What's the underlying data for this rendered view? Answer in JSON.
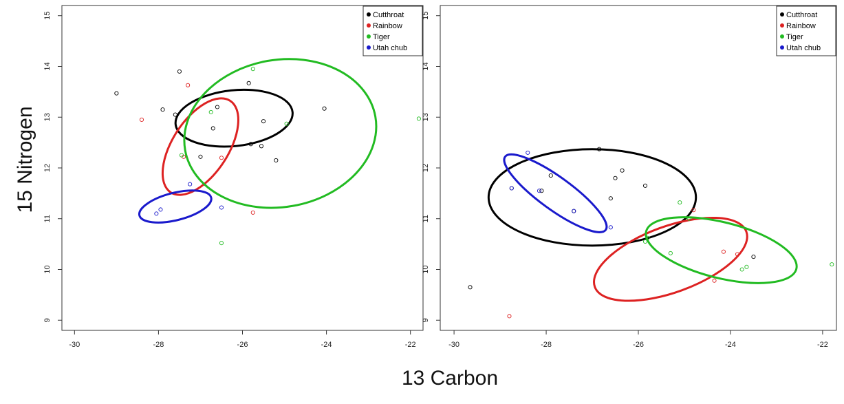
{
  "figure": {
    "xlabel": "13 Carbon",
    "ylabel": "15 Nitrogen"
  },
  "chart_data": [
    {
      "type": "scatter",
      "title": "",
      "xlabel": "",
      "ylabel": "",
      "xlim": [
        -30.3,
        -21.7
      ],
      "ylim": [
        8.8,
        15.2
      ],
      "x_ticks": [
        "-30",
        "-28",
        "-26",
        "-24",
        "-22"
      ],
      "y_ticks": [
        "9",
        "10",
        "11",
        "12",
        "13",
        "14",
        "15"
      ],
      "legend_position": "top-right",
      "series": [
        {
          "name": "Cutthroat",
          "color": "#000000",
          "points": [
            [
              -29.0,
              13.47
            ],
            [
              -27.5,
              13.9
            ],
            [
              -27.9,
              13.15
            ],
            [
              -27.6,
              13.05
            ],
            [
              -26.7,
              12.78
            ],
            [
              -26.6,
              13.2
            ],
            [
              -25.85,
              13.67
            ],
            [
              -25.8,
              12.47
            ],
            [
              -25.5,
              12.92
            ],
            [
              -25.55,
              12.43
            ],
            [
              -25.2,
              12.15
            ],
            [
              -24.05,
              13.17
            ],
            [
              -27.0,
              12.22
            ]
          ],
          "ellipse": {
            "cx": -26.2,
            "cy": 12.98,
            "rx": 1.4,
            "ry": 0.55,
            "angle": -6
          }
        },
        {
          "name": "Rainbow",
          "color": "#dd2222",
          "points": [
            [
              -28.4,
              12.95
            ],
            [
              -27.3,
              13.63
            ],
            [
              -26.5,
              12.2
            ],
            [
              -27.4,
              12.22
            ],
            [
              -25.75,
              11.12
            ]
          ],
          "ellipse": {
            "cx": -27.0,
            "cy": 12.42,
            "rx": 1.3,
            "ry": 0.55,
            "angle": -57
          }
        },
        {
          "name": "Tiger",
          "color": "#22bb22",
          "points": [
            [
              -25.75,
              13.95
            ],
            [
              -26.75,
              13.1
            ],
            [
              -24.95,
              12.87
            ],
            [
              -21.8,
              12.97
            ],
            [
              -26.5,
              10.52
            ],
            [
              -27.45,
              12.25
            ]
          ],
          "ellipse": {
            "cx": -25.1,
            "cy": 12.68,
            "rx": 2.3,
            "ry": 1.45,
            "angle": -10
          }
        },
        {
          "name": "Utah chub",
          "color": "#1a1acc",
          "points": [
            [
              -27.25,
              11.68
            ],
            [
              -27.95,
              11.18
            ],
            [
              -28.05,
              11.1
            ],
            [
              -26.5,
              11.22
            ]
          ],
          "ellipse": {
            "cx": -27.6,
            "cy": 11.24,
            "rx": 0.88,
            "ry": 0.27,
            "angle": -14
          }
        }
      ]
    },
    {
      "type": "scatter",
      "title": "",
      "xlabel": "",
      "ylabel": "",
      "xlim": [
        -30.3,
        -21.7
      ],
      "ylim": [
        8.8,
        15.2
      ],
      "x_ticks": [
        "-30",
        "-28",
        "-26",
        "-24",
        "-22"
      ],
      "y_ticks": [
        "9",
        "10",
        "11",
        "12",
        "13",
        "14",
        "15"
      ],
      "legend_position": "top-right",
      "series": [
        {
          "name": "Cutthroat",
          "color": "#000000",
          "points": [
            [
              -29.65,
              9.65
            ],
            [
              -28.75,
              11.6
            ],
            [
              -28.1,
              11.55
            ],
            [
              -27.4,
              11.15
            ],
            [
              -26.85,
              12.37
            ],
            [
              -26.5,
              11.8
            ],
            [
              -26.35,
              11.95
            ],
            [
              -26.6,
              11.4
            ],
            [
              -25.85,
              11.65
            ],
            [
              -23.5,
              10.25
            ],
            [
              -27.9,
              11.85
            ]
          ],
          "ellipse": {
            "cx": -27.0,
            "cy": 11.42,
            "rx": 2.25,
            "ry": 0.95,
            "angle": 0
          }
        },
        {
          "name": "Rainbow",
          "color": "#dd2222",
          "points": [
            [
              -28.8,
              9.08
            ],
            [
              -24.8,
              11.17
            ],
            [
              -24.15,
              10.35
            ],
            [
              -23.85,
              10.3
            ],
            [
              -24.35,
              9.78
            ]
          ],
          "ellipse": {
            "cx": -25.3,
            "cy": 10.2,
            "rx": 1.75,
            "ry": 0.65,
            "angle": -20
          }
        },
        {
          "name": "Tiger",
          "color": "#22bb22",
          "points": [
            [
              -25.85,
              10.55
            ],
            [
              -25.1,
              11.32
            ],
            [
              -25.3,
              10.32
            ],
            [
              -23.75,
              10.0
            ],
            [
              -23.65,
              10.05
            ],
            [
              -21.8,
              10.1
            ],
            [
              -25.8,
              10.62
            ],
            [
              -24.9,
              11.0
            ]
          ],
          "ellipse": {
            "cx": -24.2,
            "cy": 10.38,
            "rx": 1.68,
            "ry": 0.55,
            "angle": 14
          }
        },
        {
          "name": "Utah chub",
          "color": "#1a1acc",
          "points": [
            [
              -28.4,
              12.3
            ],
            [
              -28.75,
              11.6
            ],
            [
              -27.4,
              11.15
            ],
            [
              -26.6,
              10.83
            ],
            [
              -28.15,
              11.55
            ]
          ],
          "ellipse": {
            "cx": -27.8,
            "cy": 11.5,
            "rx": 1.35,
            "ry": 0.32,
            "angle": 36
          }
        }
      ]
    }
  ]
}
